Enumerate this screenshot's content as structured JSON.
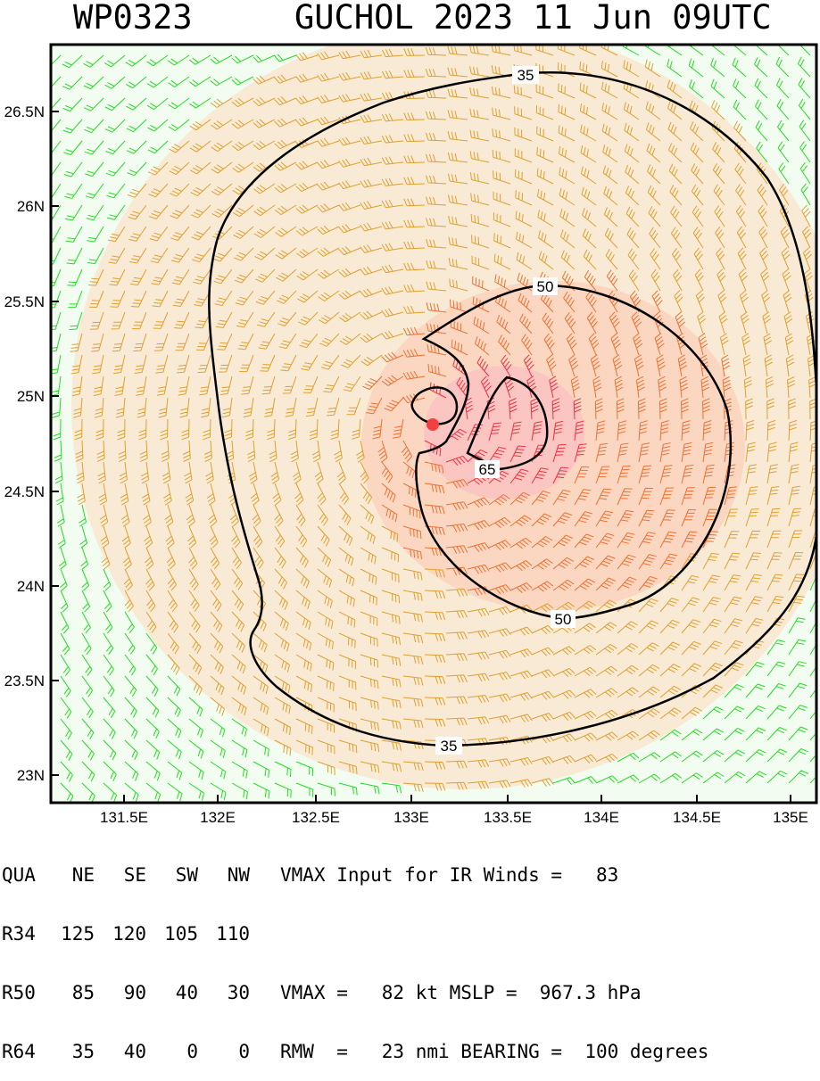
{
  "header": {
    "left": "WP0323",
    "right": "GUCHOL 2023 11 Jun 09UTC"
  },
  "map": {
    "lon_ticks": [
      "131.5E",
      "132E",
      "132.5E",
      "133E",
      "133.5E",
      "134E",
      "134.5E",
      "135E"
    ],
    "lat_ticks": [
      "26.5N",
      "26N",
      "25.5N",
      "25N",
      "24.5N",
      "24N",
      "23.5N",
      "23N"
    ],
    "contour_labels": [
      "35",
      "50",
      "65",
      "50",
      "35"
    ],
    "barb_colors": {
      "weak": "#22dd22",
      "moderate": "#e0a030",
      "strong": "#f07030",
      "intense": "#f03040"
    },
    "center_color": "#f04040"
  },
  "table": {
    "header": [
      "QUA",
      "NE",
      "SE",
      "SW",
      "NW"
    ],
    "rows": [
      {
        "label": "R34",
        "values": [
          "125",
          "120",
          "105",
          "110"
        ]
      },
      {
        "label": "R50",
        "values": [
          "85",
          "90",
          "40",
          "30"
        ]
      },
      {
        "label": "R64",
        "values": [
          "35",
          "40",
          "0",
          "0"
        ]
      }
    ],
    "right_lines": [
      "VMAX Input for IR Winds =   83",
      "",
      "VMAX =   82 kt MSLP =  967.3 hPa",
      "RMW  =   23 nmi BEARING =  100 degrees"
    ]
  }
}
